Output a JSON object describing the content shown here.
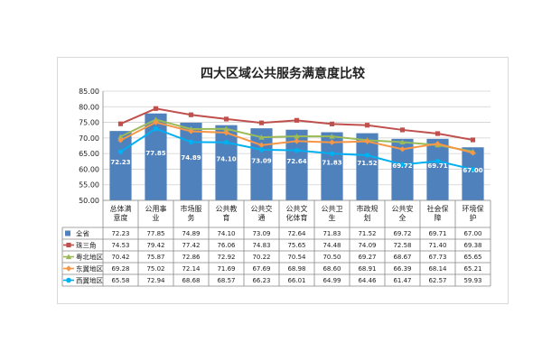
{
  "chart_data": {
    "type": "bar",
    "title": "四大区域公共服务满意度比较",
    "ylim": [
      50,
      85
    ],
    "yticks": [
      "85.00",
      "80.00",
      "75.00",
      "70.00",
      "65.00",
      "60.00",
      "55.00",
      "50.00"
    ],
    "categories": [
      "总体满意度",
      "公用事业",
      "市场服务",
      "公共教育",
      "公共交通",
      "公共文化体育",
      "公共卫生",
      "市政规划",
      "公共安全",
      "社会保障",
      "环境保护"
    ],
    "category_lines": [
      [
        "总体满",
        "意度"
      ],
      [
        "公用事",
        "业"
      ],
      [
        "市场服",
        "务"
      ],
      [
        "公共教",
        "育"
      ],
      [
        "公共交",
        "通"
      ],
      [
        "公共文",
        "化体育"
      ],
      [
        "公共卫",
        "生"
      ],
      [
        "市政规",
        "划"
      ],
      [
        "公共安",
        "全"
      ],
      [
        "社会保",
        "障"
      ],
      [
        "环境保",
        "护"
      ]
    ],
    "bar_labels": [
      "72.23",
      "77.85",
      "74.89",
      "74.10",
      "73.09",
      "72.64",
      "71.83",
      "71.52",
      "69.72",
      "69.71",
      "67.00"
    ],
    "series": [
      {
        "name": "全省",
        "kind": "bar",
        "color": "#4f81bd",
        "marker": "square",
        "values": [
          72.23,
          77.85,
          74.89,
          74.1,
          73.09,
          72.64,
          71.83,
          71.52,
          69.72,
          69.71,
          67.0
        ],
        "labels": [
          "72.23",
          "77.85",
          "74.89",
          "74.10",
          "73.09",
          "72.64",
          "71.83",
          "71.52",
          "69.72",
          "69.71",
          "67.00"
        ]
      },
      {
        "name": "珠三角",
        "kind": "line",
        "color": "#c0504d",
        "marker": "square",
        "values": [
          74.53,
          79.42,
          77.42,
          76.06,
          74.83,
          75.65,
          74.48,
          74.09,
          72.58,
          71.4,
          69.38
        ],
        "labels": [
          "74.53",
          "79.42",
          "77.42",
          "76.06",
          "74.83",
          "75.65",
          "74.48",
          "74.09",
          "72.58",
          "71.40",
          "69.38"
        ]
      },
      {
        "name": "粤北地区",
        "kind": "line",
        "color": "#9bbb59",
        "marker": "triangle",
        "values": [
          70.42,
          75.87,
          72.86,
          72.92,
          70.22,
          70.54,
          70.5,
          69.27,
          68.67,
          67.73,
          65.65
        ],
        "labels": [
          "70.42",
          "75.87",
          "72.86",
          "72.92",
          "70.22",
          "70.54",
          "70.50",
          "69.27",
          "68.67",
          "67.73",
          "65.65"
        ]
      },
      {
        "name": "东翼地区",
        "kind": "line",
        "color": "#f79646",
        "marker": "diamond",
        "values": [
          69.28,
          75.02,
          72.14,
          71.69,
          67.69,
          68.98,
          68.6,
          68.91,
          66.39,
          68.14,
          65.21
        ],
        "labels": [
          "69.28",
          "75.02",
          "72.14",
          "71.69",
          "67.69",
          "68.98",
          "68.60",
          "68.91",
          "66.39",
          "68.14",
          "65.21"
        ]
      },
      {
        "name": "西翼地区",
        "kind": "line",
        "color": "#00b0f0",
        "marker": "circle",
        "values": [
          65.58,
          72.94,
          68.68,
          68.57,
          66.23,
          66.01,
          64.99,
          64.46,
          61.47,
          62.57,
          59.93
        ],
        "labels": [
          "65.58",
          "72.94",
          "68.68",
          "68.57",
          "66.23",
          "66.01",
          "64.99",
          "64.46",
          "61.47",
          "62.57",
          "59.93"
        ]
      }
    ],
    "grid": true,
    "legend": "data-table"
  }
}
